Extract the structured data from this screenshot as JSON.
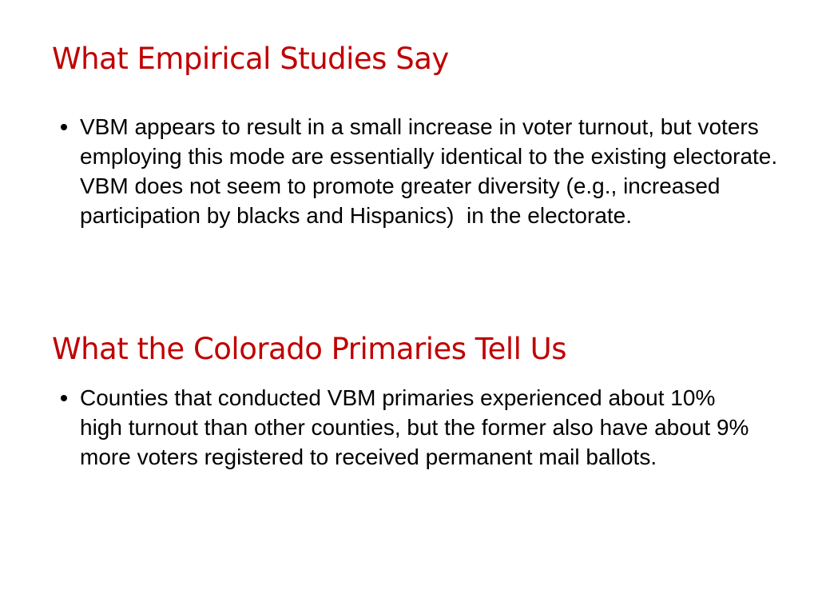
{
  "sections": [
    {
      "heading": "What Empirical Studies Say",
      "bullets": [
        "VBM appears to result in a small increase in voter turnout, but voters employing this mode are essentially identical to the existing electorate. VBM does not seem to promote greater diversity (e.g., increased participation by blacks and Hispanics)  in the electorate."
      ]
    },
    {
      "heading": "What the Colorado Primaries Tell Us",
      "bullets": [
        "Counties that conducted VBM primaries experienced about 10% high turnout than other counties, but the former also have about 9% more voters registered to received permanent mail ballots."
      ]
    }
  ]
}
